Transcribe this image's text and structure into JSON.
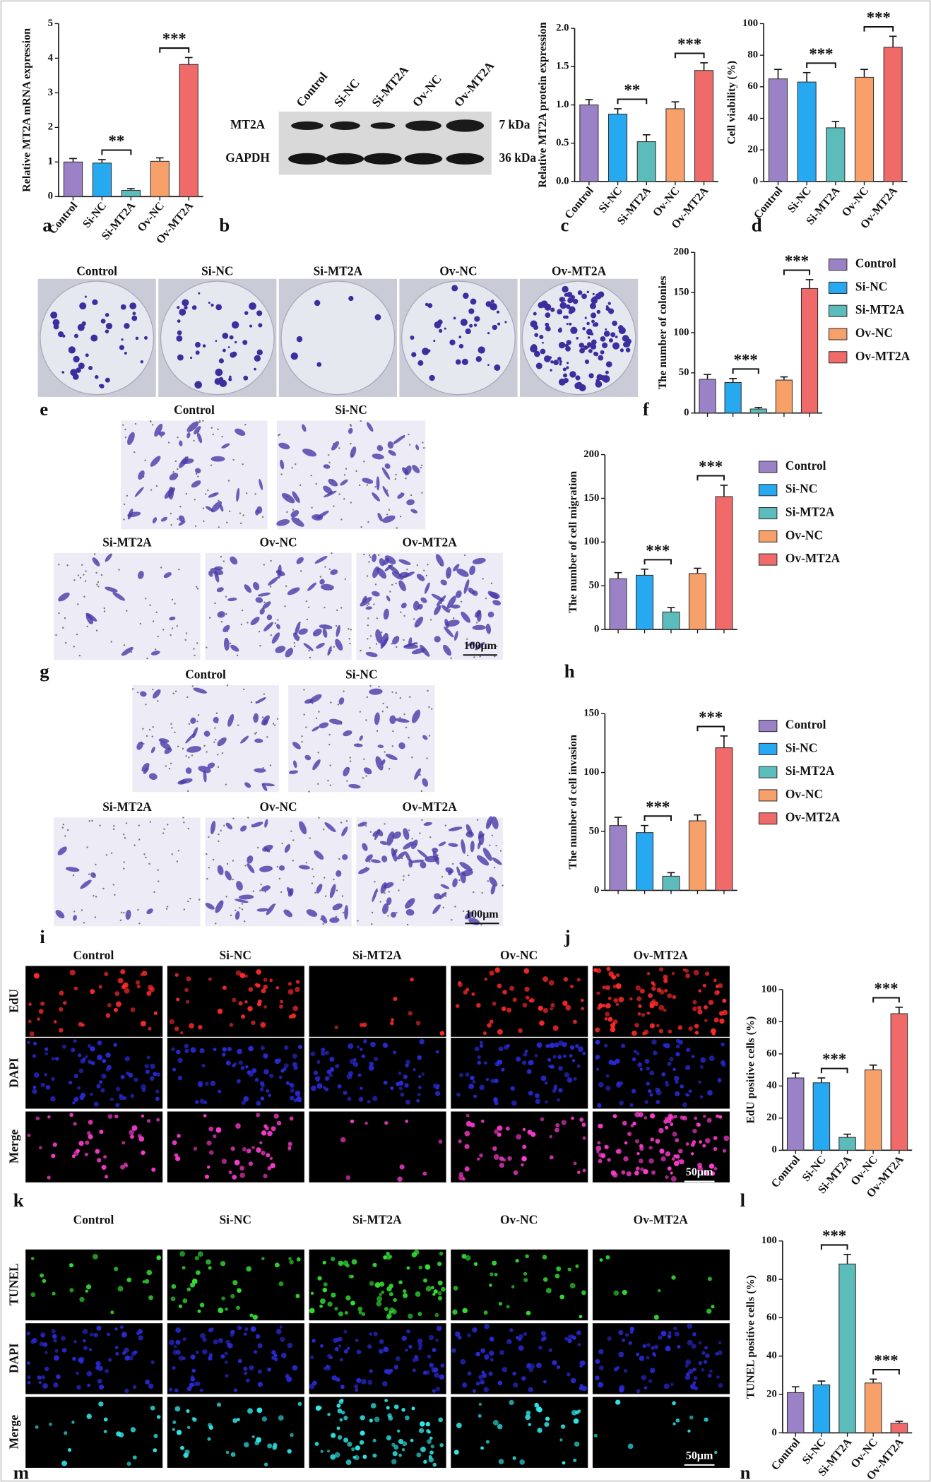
{
  "panel_letters": [
    "a",
    "b",
    "c",
    "d",
    "e",
    "f",
    "g",
    "h",
    "i",
    "j",
    "k",
    "l",
    "m",
    "n"
  ],
  "blot": {
    "lanes": [
      "Control",
      "Si-NC",
      "Si-MT2A",
      "Ov-NC",
      "Ov-MT2A"
    ],
    "rows": [
      "MT2A",
      "GAPDH"
    ],
    "sizes": [
      "7 kDa",
      "36 kDa"
    ]
  },
  "colony_images": {
    "labels": [
      "Control",
      "Si-NC",
      "Si-MT2A",
      "Ov-NC",
      "Ov-MT2A"
    ]
  },
  "migration_images": {
    "labels": [
      "Control",
      "Si-NC",
      "Si-MT2A",
      "Ov-NC",
      "Ov-MT2A"
    ],
    "scale_bar": "100μm"
  },
  "invasion_images": {
    "labels": [
      "Control",
      "Si-NC",
      "Si-MT2A",
      "Ov-NC",
      "Ov-MT2A"
    ],
    "scale_bar": "100μm"
  },
  "edu_images": {
    "columns": [
      "Control",
      "Si-NC",
      "Si-MT2A",
      "Ov-NC",
      "Ov-MT2A"
    ],
    "rows": [
      "EdU",
      "DAPI",
      "Merge"
    ],
    "scale_bar": "50μm"
  },
  "tunel_images": {
    "columns": [
      "Control",
      "Si-NC",
      "Si-MT2A",
      "Ov-NC",
      "Ov-MT2A"
    ],
    "rows": [
      "TUNEL",
      "DAPI",
      "Merge"
    ],
    "scale_bar": "50μm"
  },
  "chart_data": [
    {
      "type": "bar",
      "y_label": "Relative MT2A mRNA expression",
      "categories": [
        "Control",
        "Si-NC",
        "Si-MT2A",
        "Ov-NC",
        "Ov-MT2A"
      ],
      "values": [
        1.0,
        0.97,
        0.18,
        1.02,
        3.82
      ],
      "errors": [
        0.1,
        0.1,
        0.05,
        0.1,
        0.2
      ],
      "colors": [
        "#9b82c6",
        "#27a9f1",
        "#5cbcbc",
        "#f7a06a",
        "#f06a6a"
      ],
      "ylim": [
        0,
        5
      ],
      "yticks": [
        0,
        1,
        2,
        3,
        4,
        5
      ],
      "annotations": [
        {
          "text": "**",
          "between": [
            "Si-NC",
            "Si-MT2A"
          ]
        },
        {
          "text": "***",
          "between": [
            "Ov-NC",
            "Ov-MT2A"
          ]
        }
      ]
    },
    {
      "type": "bar",
      "y_label": "Relative MT2A protein expression",
      "categories": [
        "Control",
        "Si-NC",
        "Si-MT2A",
        "Ov-NC",
        "Ov-MT2A"
      ],
      "values": [
        1.0,
        0.88,
        0.52,
        0.95,
        1.45
      ],
      "errors": [
        0.07,
        0.07,
        0.09,
        0.09,
        0.1
      ],
      "colors": [
        "#9b82c6",
        "#27a9f1",
        "#5cbcbc",
        "#f7a06a",
        "#f06a6a"
      ],
      "ylim": [
        0,
        2
      ],
      "yticks": [
        {
          "value": 0,
          "label": "0.0"
        },
        0.5,
        {
          "value": 1,
          "label": "1.0"
        },
        1.5,
        {
          "value": 2,
          "label": "2.0"
        }
      ],
      "annotations": [
        {
          "text": "**",
          "between": [
            "Si-NC",
            "Si-MT2A"
          ]
        },
        {
          "text": "***",
          "between": [
            "Ov-NC",
            "Ov-MT2A"
          ]
        }
      ]
    },
    {
      "type": "bar",
      "y_label": "Cell viability (%)",
      "categories": [
        "Control",
        "Si-NC",
        "Si-MT2A",
        "Ov-NC",
        "Ov-MT2A"
      ],
      "values": [
        65,
        63,
        34,
        66,
        85
      ],
      "errors": [
        6,
        6,
        4,
        5,
        7
      ],
      "colors": [
        "#9b82c6",
        "#27a9f1",
        "#5cbcbc",
        "#f7a06a",
        "#f06a6a"
      ],
      "ylim": [
        0,
        100
      ],
      "yticks": [
        0,
        20,
        40,
        60,
        80,
        100
      ],
      "annotations": [
        {
          "text": "***",
          "between": [
            "Si-NC",
            "Si-MT2A"
          ]
        },
        {
          "text": "***",
          "between": [
            "Ov-NC",
            "Ov-MT2A"
          ]
        }
      ]
    },
    {
      "type": "bar",
      "y_label": "The number of colonies",
      "legend": "right",
      "categories": [
        "Control",
        "Si-NC",
        "Si-MT2A",
        "Ov-NC",
        "Ov-MT2A"
      ],
      "values": [
        42,
        38,
        5,
        41,
        155
      ],
      "errors": [
        6,
        5,
        2,
        4,
        11
      ],
      "colors": [
        "#9b82c6",
        "#27a9f1",
        "#5cbcbc",
        "#f7a06a",
        "#f06a6a"
      ],
      "ylim": [
        0,
        200
      ],
      "yticks": [
        0,
        50,
        100,
        150,
        200
      ],
      "annotations": [
        {
          "text": "***",
          "between": [
            "Si-NC",
            "Si-MT2A"
          ]
        },
        {
          "text": "***",
          "between": [
            "Ov-NC",
            "Ov-MT2A"
          ]
        }
      ]
    },
    {
      "type": "bar",
      "y_label": "The number of cell migration",
      "legend": "right",
      "categories": [
        "Control",
        "Si-NC",
        "Si-MT2A",
        "Ov-NC",
        "Ov-MT2A"
      ],
      "values": [
        58,
        62,
        20,
        64,
        152
      ],
      "errors": [
        7,
        7,
        5,
        6,
        13
      ],
      "colors": [
        "#9b82c6",
        "#27a9f1",
        "#5cbcbc",
        "#f7a06a",
        "#f06a6a"
      ],
      "ylim": [
        0,
        200
      ],
      "yticks": [
        0,
        50,
        100,
        150,
        200
      ],
      "annotations": [
        {
          "text": "***",
          "between": [
            "Si-NC",
            "Si-MT2A"
          ]
        },
        {
          "text": "***",
          "between": [
            "Ov-NC",
            "Ov-MT2A"
          ]
        }
      ]
    },
    {
      "type": "bar",
      "y_label": "The number of cell invasion",
      "legend": "right",
      "categories": [
        "Control",
        "Si-NC",
        "Si-MT2A",
        "Ov-NC",
        "Ov-MT2A"
      ],
      "values": [
        55,
        49,
        12,
        59,
        121
      ],
      "errors": [
        7,
        6,
        3,
        5,
        10
      ],
      "colors": [
        "#9b82c6",
        "#27a9f1",
        "#5cbcbc",
        "#f7a06a",
        "#f06a6a"
      ],
      "ylim": [
        0,
        150
      ],
      "yticks": [
        0,
        50,
        100,
        150
      ],
      "annotations": [
        {
          "text": "***",
          "between": [
            "Si-NC",
            "Si-MT2A"
          ]
        },
        {
          "text": "***",
          "between": [
            "Ov-NC",
            "Ov-MT2A"
          ]
        }
      ]
    },
    {
      "type": "bar",
      "y_label": "EdU positive cells (%)",
      "categories": [
        "Control",
        "Si-NC",
        "Si-MT2A",
        "Ov-NC",
        "Ov-MT2A"
      ],
      "values": [
        45,
        42,
        8,
        50,
        85
      ],
      "errors": [
        3,
        3,
        2,
        3,
        4
      ],
      "colors": [
        "#9b82c6",
        "#27a9f1",
        "#5cbcbc",
        "#f7a06a",
        "#f06a6a"
      ],
      "ylim": [
        0,
        100
      ],
      "yticks": [
        0,
        20,
        40,
        60,
        80,
        100
      ],
      "annotations": [
        {
          "text": "***",
          "between": [
            "Si-NC",
            "Si-MT2A"
          ]
        },
        {
          "text": "***",
          "between": [
            "Ov-NC",
            "Ov-MT2A"
          ]
        }
      ]
    },
    {
      "type": "bar",
      "y_label": "TUNEL positive cells (%)",
      "categories": [
        "Control",
        "Si-NC",
        "Si-MT2A",
        "Ov-NC",
        "Ov-MT2A"
      ],
      "values": [
        21,
        25,
        88,
        26,
        5
      ],
      "errors": [
        3,
        2,
        5,
        2,
        1
      ],
      "colors": [
        "#9b82c6",
        "#27a9f1",
        "#5cbcbc",
        "#f7a06a",
        "#f06a6a"
      ],
      "ylim": [
        0,
        100
      ],
      "yticks": [
        0,
        20,
        40,
        60,
        80,
        100
      ],
      "annotations": [
        {
          "text": "***",
          "between": [
            "Si-NC",
            "Si-MT2A"
          ]
        },
        {
          "text": "***",
          "between": [
            "Ov-NC",
            "Ov-MT2A"
          ]
        }
      ]
    }
  ]
}
